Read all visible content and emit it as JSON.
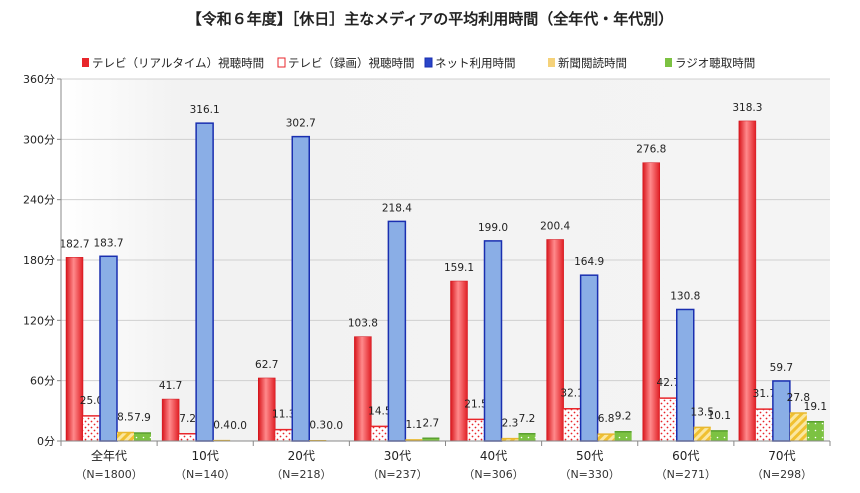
{
  "chart_data": {
    "type": "bar",
    "title": "【令和６年度】［休日］主なメディアの平均利用時間（全年代・年代別）",
    "categories": [
      "全年代",
      "10代",
      "20代",
      "30代",
      "40代",
      "50代",
      "60代",
      "70代"
    ],
    "category_n": [
      "（N=1800）",
      "（N=140）",
      "（N=218）",
      "（N=237）",
      "（N=306）",
      "（N=330）",
      "（N=271）",
      "（N=298）"
    ],
    "ylim": [
      0,
      360
    ],
    "yticks": [
      "0分",
      "60分",
      "120分",
      "180分",
      "240分",
      "300分",
      "360分"
    ],
    "grid": true,
    "legend_placement": "top",
    "series": [
      {
        "name": "テレビ（リアルタイム）視聴時間",
        "color": "#e8262b",
        "values": [
          182.7,
          41.7,
          62.7,
          103.8,
          159.1,
          200.4,
          276.8,
          318.3
        ]
      },
      {
        "name": "テレビ（録画）視聴時間",
        "color": "#e8262b",
        "values": [
          25.0,
          7.2,
          11.3,
          14.5,
          21.5,
          32.1,
          42.7,
          31.7
        ]
      },
      {
        "name": "ネット利用時間",
        "color": "#8aaee6",
        "values": [
          183.7,
          316.1,
          302.7,
          218.4,
          199.0,
          164.9,
          130.8,
          59.7
        ]
      },
      {
        "name": "新聞閲読時間",
        "color": "#f5c842",
        "values": [
          8.5,
          0.4,
          0.3,
          1.1,
          2.3,
          6.8,
          13.5,
          27.8
        ]
      },
      {
        "name": "ラジオ聴取時間",
        "color": "#7cc242",
        "values": [
          7.9,
          0.0,
          0.0,
          2.7,
          7.2,
          9.2,
          10.1,
          19.1
        ]
      }
    ],
    "data_labels": [
      [
        "182.7",
        "41.7",
        "62.7",
        "103.8",
        "159.1",
        "200.4",
        "276.8",
        "318.3"
      ],
      [
        "25.0",
        "7.2",
        "11.3",
        "14.5",
        "21.5",
        "32.1",
        "42.7",
        "31.7"
      ],
      [
        "183.7",
        "316.1",
        "302.7",
        "218.4",
        "199.0",
        "164.9",
        "130.8",
        "59.7"
      ],
      [
        "8.5",
        "0.4",
        "0.3",
        "1.1",
        "2.3",
        "6.8",
        "13.5",
        "27.8"
      ],
      [
        "7.9",
        "0.0",
        "0.0",
        "2.7",
        "7.2",
        "9.2",
        "10.1",
        "19.1"
      ]
    ]
  }
}
